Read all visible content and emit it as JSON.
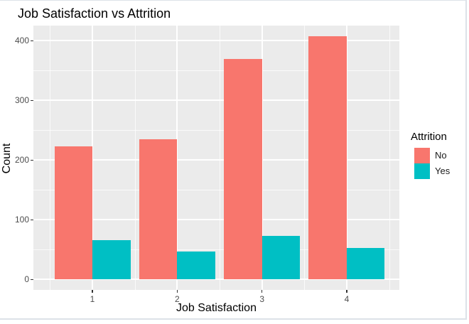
{
  "window": {
    "background": "#FFFFFF",
    "border_color": "#DDE2E8"
  },
  "chart_data": {
    "type": "bar",
    "title": "Job Satisfaction vs Attrition",
    "xlabel": "Job Satisfaction",
    "ylabel": "Count",
    "categories": [
      "1",
      "2",
      "3",
      "4"
    ],
    "series": [
      {
        "name": "No",
        "color": "#F8766D",
        "values": [
          223,
          234,
          369,
          407
        ]
      },
      {
        "name": "Yes",
        "color": "#00BFC4",
        "values": [
          66,
          46,
          73,
          52
        ]
      }
    ],
    "bar_layout": "dodged",
    "y_ticks": [
      0,
      100,
      200,
      300,
      400
    ],
    "y_minor_ticks": [
      50,
      150,
      250,
      350
    ],
    "ylim": [
      0,
      425
    ],
    "grid": "major+minor",
    "panel_background": "#EBEBEB",
    "gridline_color": "#FFFFFF",
    "tick_label_color": "#4D4D4D",
    "tick_mark_color": "#333333",
    "text_color": "#000000",
    "legend": {
      "title": "Attrition",
      "position": "right"
    }
  }
}
